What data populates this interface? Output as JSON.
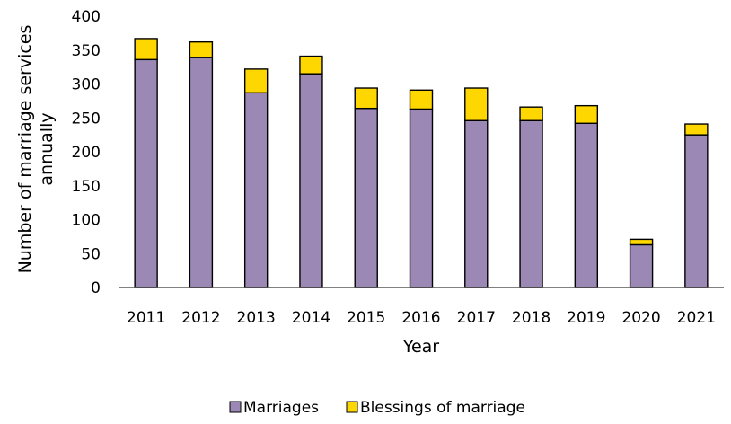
{
  "chart_data": {
    "type": "bar",
    "stacked": true,
    "categories": [
      "2011",
      "2012",
      "2013",
      "2014",
      "2015",
      "2016",
      "2017",
      "2018",
      "2019",
      "2020",
      "2021"
    ],
    "series": [
      {
        "name": "Marriages",
        "color": "#9B88B5",
        "values": [
          336,
          339,
          287,
          315,
          264,
          263,
          246,
          246,
          242,
          63,
          225
        ]
      },
      {
        "name": "Blessings of marriage",
        "color": "#FFD700",
        "values": [
          31,
          23,
          35,
          26,
          30,
          28,
          48,
          20,
          26,
          8,
          16
        ]
      }
    ],
    "xlabel": "Year",
    "ylabel_lines": [
      "Number of marriage services",
      "annually"
    ],
    "ylim": [
      0,
      400
    ],
    "yticks": [
      0,
      50,
      100,
      150,
      200,
      250,
      300,
      350,
      400
    ],
    "grid": false,
    "legend_position": "bottom"
  }
}
